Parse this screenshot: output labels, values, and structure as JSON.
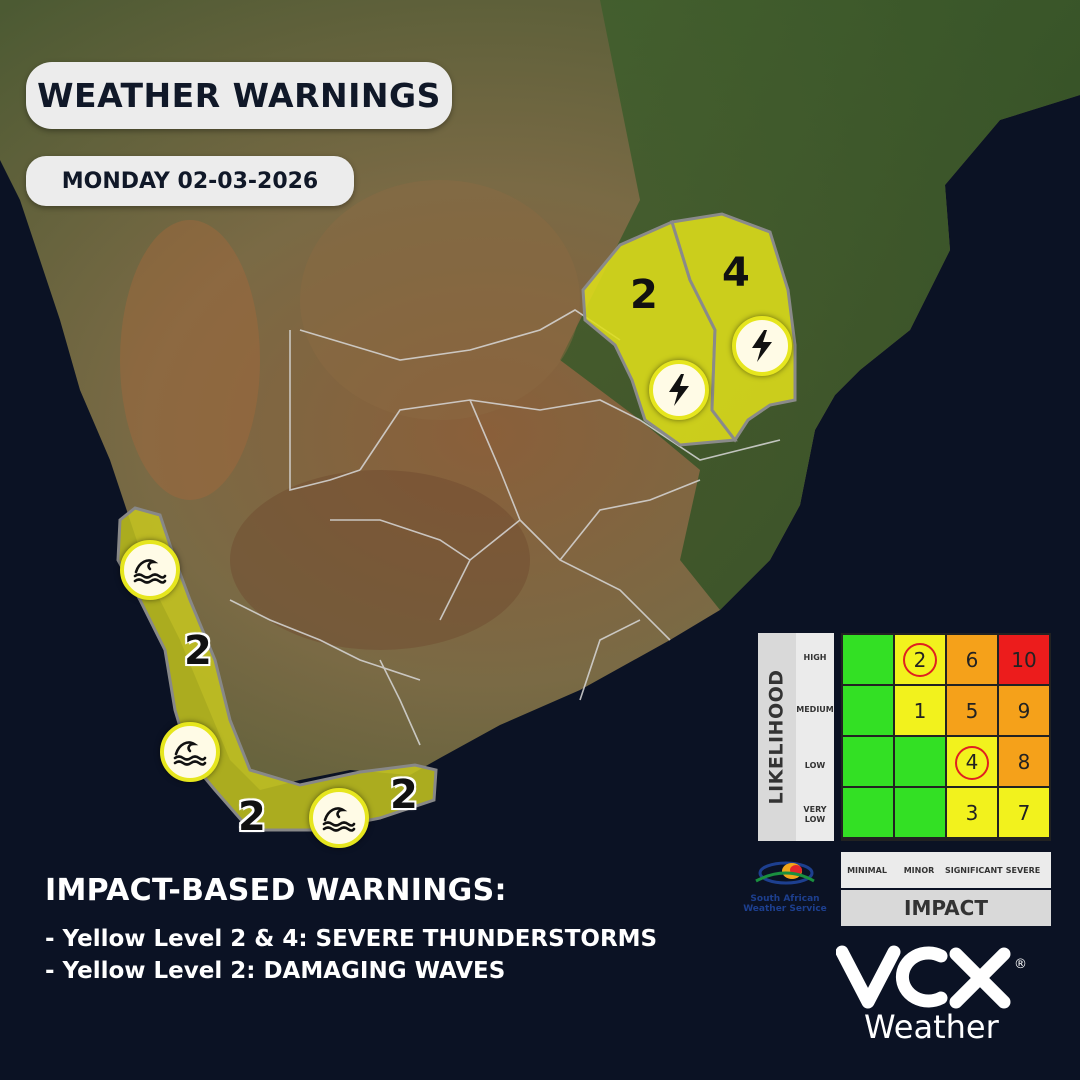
{
  "header": {
    "title": "WEATHER WARNINGS",
    "date": "MONDAY 02-03-2026"
  },
  "warnings": {
    "north_east_left_level": "2",
    "north_east_right_level": "4",
    "west_coast_level": "2",
    "south_coast_level_left": "2",
    "south_coast_level_right": "2"
  },
  "impact_text": {
    "heading": "IMPACT-BASED WARNINGS:",
    "lines": [
      "- Yellow Level 2 & 4: SEVERE THUNDERSTORMS",
      "- Yellow Level 2: DAMAGING WAVES"
    ]
  },
  "matrix": {
    "likelihood_label": "LIKELIHOOD",
    "impact_label": "IMPACT",
    "likelihood_levels": [
      "HIGH",
      "MEDIUM",
      "LOW",
      "VERY LOW"
    ],
    "impact_levels": [
      "MINIMAL",
      "MINOR",
      "SIGNIFICANT",
      "SEVERE"
    ],
    "rows": [
      [
        "",
        "2",
        "6",
        "10"
      ],
      [
        "",
        "1",
        "5",
        "9"
      ],
      [
        "",
        "",
        "4",
        "8"
      ],
      [
        "",
        "",
        "3",
        "7"
      ]
    ],
    "colors": {
      "green": "#33e024",
      "yellow": "#f2f21d",
      "orange": "#f5a11a",
      "red": "#ec1c1c"
    }
  },
  "logos": {
    "saws_line1": "South African",
    "saws_line2": "Weather Service",
    "vox_trademark": "®",
    "vox_weather": "Weather"
  }
}
